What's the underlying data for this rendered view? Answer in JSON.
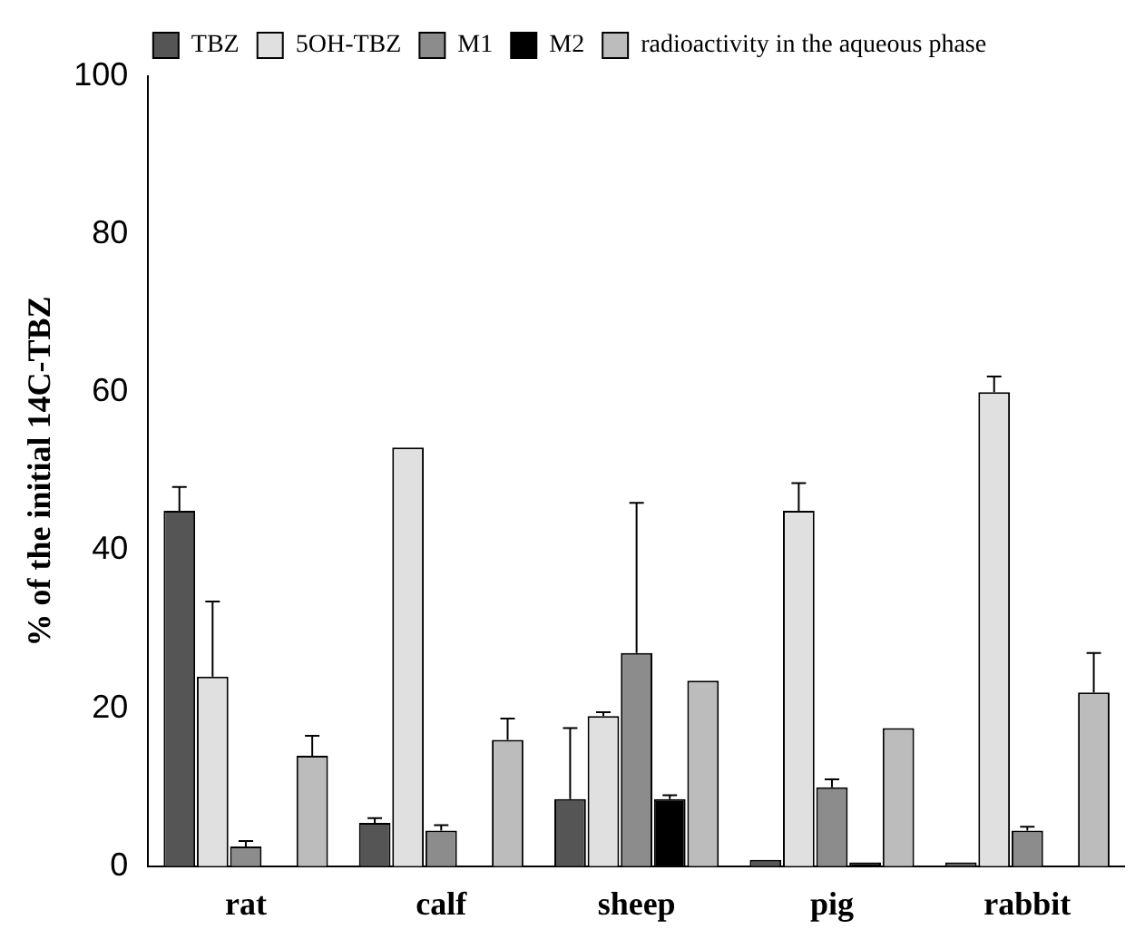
{
  "chart_data": {
    "type": "bar",
    "ylabel": "% of the initial 14C-TBZ",
    "categories": [
      "rat",
      "calf",
      "sheep",
      "pig",
      "rabbit"
    ],
    "ylim": [
      0,
      100
    ],
    "yticks": [
      0,
      20,
      40,
      60,
      80,
      100
    ],
    "grid": false,
    "legend": "top",
    "series": [
      {
        "name": "TBZ",
        "color": "#555555",
        "values": [
          45,
          5.5,
          8.5,
          0.8,
          0.5
        ],
        "errors": [
          3,
          0.6,
          9,
          null,
          null
        ]
      },
      {
        "name": "5OH-TBZ",
        "color": "#e0e0e0",
        "values": [
          24,
          53,
          19,
          45,
          60
        ],
        "errors": [
          9.5,
          null,
          0.5,
          3.5,
          2
        ]
      },
      {
        "name": "M1",
        "color": "#8c8c8c",
        "values": [
          2.5,
          4.5,
          27,
          10,
          4.5
        ],
        "errors": [
          0.7,
          0.7,
          19,
          1,
          0.5
        ]
      },
      {
        "name": "M2",
        "color": "#000000",
        "values": [
          null,
          null,
          8.5,
          0.5,
          null
        ],
        "errors": [
          null,
          null,
          0.5,
          null,
          null
        ]
      },
      {
        "name": "radioactivity in the aqueous phase",
        "color": "#bcbcbc",
        "values": [
          14,
          16,
          23.5,
          17.5,
          22
        ],
        "errors": [
          2.5,
          2.7,
          null,
          null,
          5
        ]
      }
    ]
  }
}
